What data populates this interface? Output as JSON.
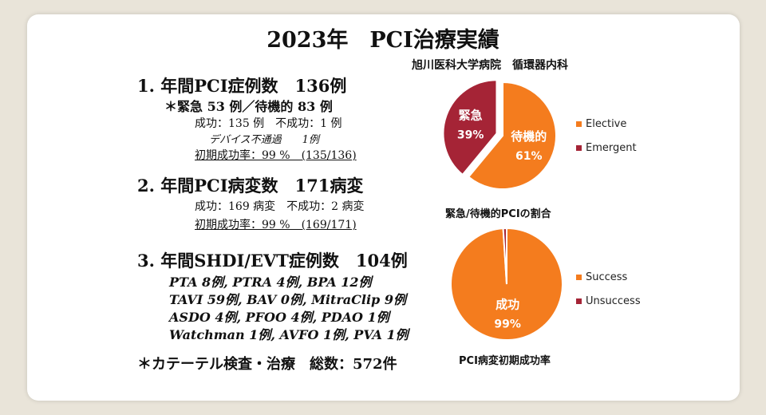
{
  "title": "2023年　PCI治療実績",
  "hospital": "旭川医科大学病院　循環器内科",
  "section1": {
    "heading": "1. 年間PCI症例数　136例",
    "sub": "＊緊急 53 例／待機的 83 例",
    "result": "成功：135 例　不成功：1 例",
    "note": "デバイス不通過　　1例",
    "rate": "初期成功率：99 %　(135/136)"
  },
  "section2": {
    "heading": "2. 年間PCI病変数　171病変",
    "result": "成功：169 病変　不成功：2 病変",
    "rate": "初期成功率：99 %　(169/171)"
  },
  "section3": {
    "heading": "3. 年間SHDI/EVT症例数　104例",
    "lines": [
      "PTA 8例,  PTRA 4例,  BPA 12例",
      "TAVI 59例, BAV 0例, MitraClip 9例",
      "ASDO 4例, PFOO 4例, PDAO 1例",
      "Watchman 1例, AVFO 1例, PVA 1例"
    ]
  },
  "footer": "＊カテーテル検査・治療　総数：572件",
  "chart_data": [
    {
      "type": "pie",
      "title": "緊急/待機的PCIの割合",
      "slices": [
        {
          "name": "Elective",
          "label": "待機的",
          "percent": 61,
          "percent_label": "61%",
          "color": "#f47c1e"
        },
        {
          "name": "Emergent",
          "label": "緊急",
          "percent": 39,
          "percent_label": "39%",
          "color": "#a52436"
        }
      ],
      "legend": [
        "Elective",
        "Emergent"
      ],
      "legend_position": "right"
    },
    {
      "type": "pie",
      "title": "PCI病変初期成功率",
      "slices": [
        {
          "name": "Success",
          "label": "成功",
          "percent": 99,
          "percent_label": "99%",
          "color": "#f47c1e"
        },
        {
          "name": "Unsuccess",
          "label": "",
          "percent": 1,
          "percent_label": "",
          "color": "#a52436"
        }
      ],
      "legend": [
        "Success",
        "Unsuccess"
      ],
      "legend_position": "right"
    }
  ]
}
